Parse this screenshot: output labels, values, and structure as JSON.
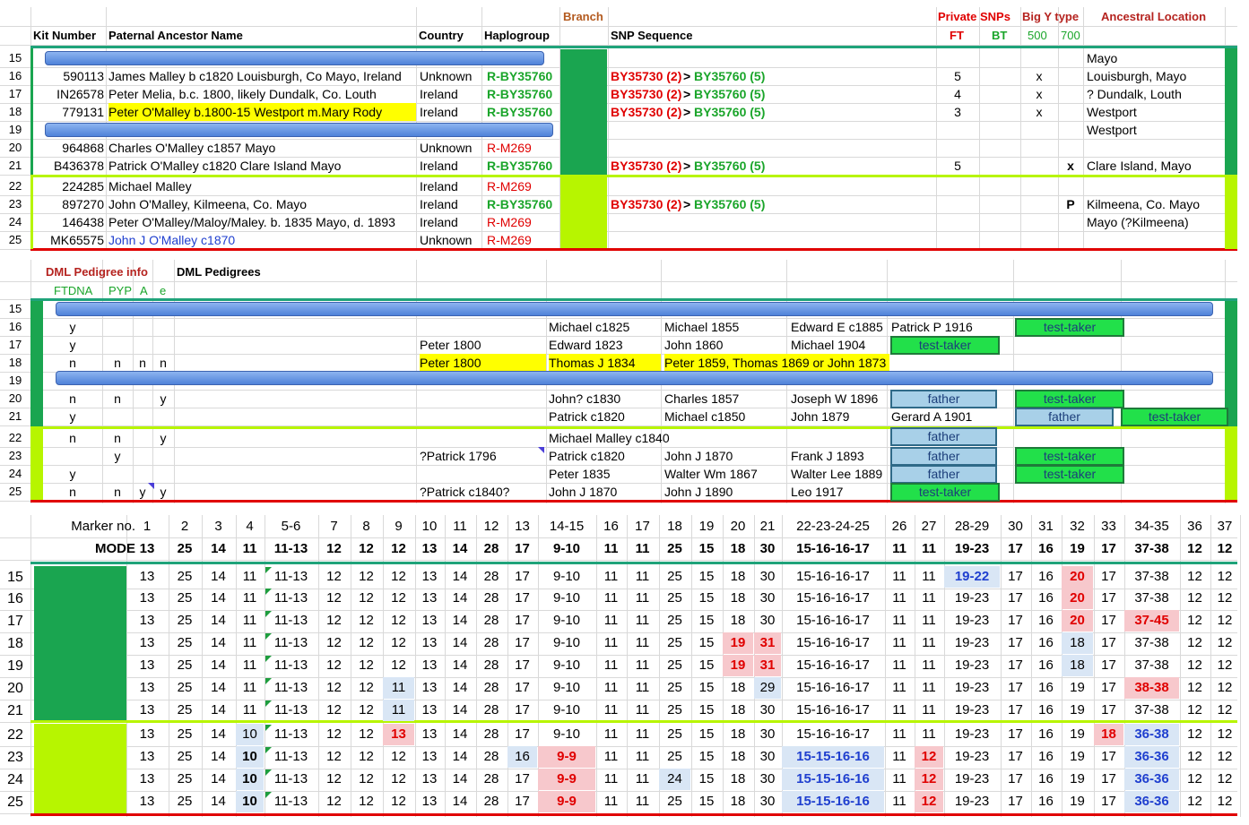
{
  "section1": {
    "header_top": {
      "branch": "Branch",
      "private_snps": "Private SNPs",
      "big_y_type": "Big Y type",
      "ancestral_location": "Ancestral Location"
    },
    "header": {
      "kit": "Kit Number",
      "name": "Paternal Ancestor Name",
      "country": "Country",
      "haplogroup": "Haplogroup",
      "snp_seq": "SNP Sequence",
      "ft": "FT",
      "bt": "BT",
      "t500": "500",
      "t700": "700"
    },
    "rows": [
      {
        "n": "15",
        "kit": "",
        "name": "",
        "country": "",
        "hap": "",
        "snp_a": "",
        "snp_b": "",
        "ft": "",
        "t500": "",
        "t700": "",
        "loc": "Mayo"
      },
      {
        "n": "16",
        "kit": "590113",
        "name": "James Malley b c1820  Louisburgh, Co Mayo, Ireland",
        "country": "Unknown",
        "hap": "R-BY35760",
        "snp_a": "BY35730 (2)",
        "snp_b": "BY35760 (5)",
        "ft": "5",
        "t500": "x",
        "t700": "",
        "loc": "Louisburgh, Mayo"
      },
      {
        "n": "17",
        "kit": "IN26578",
        "name": "Peter Melia, b.c. 1800, likely Dundalk, Co. Louth",
        "country": "Ireland",
        "hap": "R-BY35760",
        "snp_a": "BY35730 (2)",
        "snp_b": "BY35760 (5)",
        "ft": "4",
        "t500": "x",
        "t700": "",
        "loc": "? Dundalk, Louth"
      },
      {
        "n": "18",
        "kit": "779131",
        "name": "Peter O'Malley b.1800-15 Westport m.Mary Rody",
        "country": "Ireland",
        "hap": "R-BY35760",
        "snp_a": "BY35730 (2)",
        "snp_b": "BY35760 (5)",
        "ft": "3",
        "t500": "x",
        "t700": "",
        "loc": "Westport"
      },
      {
        "n": "19",
        "kit": "",
        "name": "",
        "country": "",
        "hap": "",
        "snp_a": "",
        "snp_b": "",
        "ft": "",
        "t500": "",
        "t700": "",
        "loc": "Westport"
      },
      {
        "n": "20",
        "kit": "964868",
        "name": "Charles O'Malley c1857 Mayo",
        "country": "Unknown",
        "hap": "R-M269",
        "snp_a": "",
        "snp_b": "",
        "ft": "",
        "t500": "",
        "t700": "",
        "loc": ""
      },
      {
        "n": "21",
        "kit": "B436378",
        "name": "Patrick O'Malley c1820 Clare Island Mayo",
        "country": "Ireland",
        "hap": "R-BY35760",
        "snp_a": "BY35730 (2)",
        "snp_b": "BY35760 (5)",
        "ft": "5",
        "t500": "",
        "t700": "x",
        "loc": "Clare Island, Mayo"
      },
      {
        "n": "22",
        "kit": "224285",
        "name": "Michael Malley",
        "country": "Ireland",
        "hap": "R-M269",
        "snp_a": "",
        "snp_b": "",
        "ft": "",
        "t500": "",
        "t700": "",
        "loc": ""
      },
      {
        "n": "23",
        "kit": "897270",
        "name": "John O'Malley, Kilmeena, Co. Mayo",
        "country": "Ireland",
        "hap": "R-BY35760",
        "snp_a": "BY35730 (2)",
        "snp_b": "BY35760 (5)",
        "ft": "",
        "t500": "",
        "t700": "P",
        "loc": "Kilmeena, Co. Mayo"
      },
      {
        "n": "24",
        "kit": "146438",
        "name": "Peter O'Malley/Maloy/Maley. b. 1835 Mayo, d. 1893",
        "country": "Ireland",
        "hap": "R-M269",
        "snp_a": "",
        "snp_b": "",
        "ft": "",
        "t500": "",
        "t700": "",
        "loc": "Mayo (?Kilmeena)"
      },
      {
        "n": "25",
        "kit": "MK65575",
        "name": "John J O'Malley c1870",
        "country": "Unknown",
        "hap": "R-M269",
        "snp_a": "",
        "snp_b": "",
        "ft": "",
        "t500": "",
        "t700": "",
        "loc": ""
      }
    ],
    "gt": ">"
  },
  "section2": {
    "header": {
      "dml_info": "DML Pedigree info",
      "dml_ped": "DML Pedigrees",
      "ftdna": "FTDNA",
      "pyp": "PYP",
      "a": "A",
      "e": "e"
    },
    "rows": [
      {
        "n": "15",
        "ftdna": "",
        "pyp": "",
        "a": "",
        "e": "",
        "g1": "",
        "g2": "",
        "g3": "",
        "g4": "",
        "g5": ""
      },
      {
        "n": "16",
        "ftdna": "y",
        "pyp": "",
        "a": "",
        "e": "",
        "g1": "",
        "g2": "Michael c1825",
        "g3": "Michael 1855",
        "g4": "Edward E c1885",
        "g5": "Patrick P 1916"
      },
      {
        "n": "17",
        "ftdna": "y",
        "pyp": "",
        "a": "",
        "e": "",
        "g1": "Peter 1800",
        "g2": "Edward 1823",
        "g3": "John 1860",
        "g4": "Michael 1904",
        "g5": ""
      },
      {
        "n": "18",
        "ftdna": "n",
        "pyp": "n",
        "a": "n",
        "e": "n",
        "g1": "Peter 1800",
        "g2": "Thomas J 1834",
        "g3": "Peter 1859, Thomas 1869 or John 1873",
        "g4": "",
        "g5": ""
      },
      {
        "n": "19",
        "ftdna": "",
        "pyp": "",
        "a": "",
        "e": "",
        "g1": "",
        "g2": "",
        "g3": "",
        "g4": "",
        "g5": ""
      },
      {
        "n": "20",
        "ftdna": "n",
        "pyp": "n",
        "a": "",
        "e": "y",
        "g1": "",
        "g2": "John? c1830",
        "g3": "Charles 1857",
        "g4": "Joseph W 1896",
        "g5": ""
      },
      {
        "n": "21",
        "ftdna": "y",
        "pyp": "",
        "a": "",
        "e": "",
        "g1": "",
        "g2": "Patrick c1820",
        "g3": "Michael c1850",
        "g4": "John 1879",
        "g5": "Gerard A 1901"
      },
      {
        "n": "22",
        "ftdna": "n",
        "pyp": "n",
        "a": "",
        "e": "y",
        "g1": "",
        "g2": "Michael Malley c1840",
        "g3": "",
        "g4": "",
        "g5": ""
      },
      {
        "n": "23",
        "ftdna": "",
        "pyp": "y",
        "a": "",
        "e": "",
        "g1": "?Patrick 1796",
        "g2": "Patrick c1820",
        "g3": "John J 1870",
        "g4": "Frank J 1893",
        "g5": ""
      },
      {
        "n": "24",
        "ftdna": "y",
        "pyp": "",
        "a": "",
        "e": "",
        "g1": "",
        "g2": "Peter 1835",
        "g3": "Walter Wm 1867",
        "g4": "Walter Lee 1889",
        "g5": ""
      },
      {
        "n": "25",
        "ftdna": "n",
        "pyp": "n",
        "a": "y",
        "e": "y",
        "g1": "?Patrick c1840?",
        "g2": "John J 1870",
        "g3": "John J 1890",
        "g4": "Leo 1917",
        "g5": ""
      }
    ],
    "labels": {
      "test_taker": "test-taker",
      "father": "father"
    }
  },
  "section3": {
    "marker_label": "Marker no.",
    "mode_label": "MODE",
    "markers": [
      "1",
      "2",
      "3",
      "4",
      "5-6",
      "7",
      "8",
      "9",
      "10",
      "11",
      "12",
      "13",
      "14-15",
      "16",
      "17",
      "18",
      "19",
      "20",
      "21",
      "22-23-24-25",
      "26",
      "27",
      "28-29",
      "30",
      "31",
      "32",
      "33",
      "34-35",
      "36",
      "37"
    ],
    "mode": [
      "13",
      "25",
      "14",
      "11",
      "11-13",
      "12",
      "12",
      "12",
      "13",
      "14",
      "28",
      "17",
      "9-10",
      "11",
      "11",
      "25",
      "15",
      "18",
      "30",
      "15-16-16-17",
      "11",
      "11",
      "19-23",
      "17",
      "16",
      "19",
      "17",
      "37-38",
      "12",
      "12"
    ],
    "rows": [
      {
        "n": "15",
        "v": [
          "13",
          "25",
          "14",
          "11",
          "11-13",
          "12",
          "12",
          "12",
          "13",
          "14",
          "28",
          "17",
          "9-10",
          "11",
          "11",
          "25",
          "15",
          "18",
          "30",
          "15-16-16-17",
          "11",
          "11",
          "19-22",
          "17",
          "16",
          "20",
          "17",
          "37-38",
          "12",
          "12"
        ]
      },
      {
        "n": "16",
        "v": [
          "13",
          "25",
          "14",
          "11",
          "11-13",
          "12",
          "12",
          "12",
          "13",
          "14",
          "28",
          "17",
          "9-10",
          "11",
          "11",
          "25",
          "15",
          "18",
          "30",
          "15-16-16-17",
          "11",
          "11",
          "19-23",
          "17",
          "16",
          "20",
          "17",
          "37-38",
          "12",
          "12"
        ]
      },
      {
        "n": "17",
        "v": [
          "13",
          "25",
          "14",
          "11",
          "11-13",
          "12",
          "12",
          "12",
          "13",
          "14",
          "28",
          "17",
          "9-10",
          "11",
          "11",
          "25",
          "15",
          "18",
          "30",
          "15-16-16-17",
          "11",
          "11",
          "19-23",
          "17",
          "16",
          "20",
          "17",
          "37-45",
          "12",
          "12"
        ]
      },
      {
        "n": "18",
        "v": [
          "13",
          "25",
          "14",
          "11",
          "11-13",
          "12",
          "12",
          "12",
          "13",
          "14",
          "28",
          "17",
          "9-10",
          "11",
          "11",
          "25",
          "15",
          "19",
          "31",
          "15-16-16-17",
          "11",
          "11",
          "19-23",
          "17",
          "16",
          "18",
          "17",
          "37-38",
          "12",
          "12"
        ]
      },
      {
        "n": "19",
        "v": [
          "13",
          "25",
          "14",
          "11",
          "11-13",
          "12",
          "12",
          "12",
          "13",
          "14",
          "28",
          "17",
          "9-10",
          "11",
          "11",
          "25",
          "15",
          "19",
          "31",
          "15-16-16-17",
          "11",
          "11",
          "19-23",
          "17",
          "16",
          "18",
          "17",
          "37-38",
          "12",
          "12"
        ]
      },
      {
        "n": "20",
        "v": [
          "13",
          "25",
          "14",
          "11",
          "11-13",
          "12",
          "12",
          "11",
          "13",
          "14",
          "28",
          "17",
          "9-10",
          "11",
          "11",
          "25",
          "15",
          "18",
          "29",
          "15-16-16-17",
          "11",
          "11",
          "19-23",
          "17",
          "16",
          "19",
          "17",
          "38-38",
          "12",
          "12"
        ]
      },
      {
        "n": "21",
        "v": [
          "13",
          "25",
          "14",
          "11",
          "11-13",
          "12",
          "12",
          "11",
          "13",
          "14",
          "28",
          "17",
          "9-10",
          "11",
          "11",
          "25",
          "15",
          "18",
          "30",
          "15-16-16-17",
          "11",
          "11",
          "19-23",
          "17",
          "16",
          "19",
          "17",
          "37-38",
          "12",
          "12"
        ]
      },
      {
        "n": "22",
        "v": [
          "13",
          "25",
          "14",
          "10",
          "11-13",
          "12",
          "12",
          "13",
          "13",
          "14",
          "28",
          "17",
          "9-10",
          "11",
          "11",
          "25",
          "15",
          "18",
          "30",
          "15-16-16-17",
          "11",
          "11",
          "19-23",
          "17",
          "16",
          "19",
          "18",
          "36-38",
          "12",
          "12"
        ]
      },
      {
        "n": "23",
        "v": [
          "13",
          "25",
          "14",
          "10",
          "11-13",
          "12",
          "12",
          "12",
          "13",
          "14",
          "28",
          "16",
          "9-9",
          "11",
          "11",
          "25",
          "15",
          "18",
          "30",
          "15-15-16-16",
          "11",
          "12",
          "19-23",
          "17",
          "16",
          "19",
          "17",
          "36-36",
          "12",
          "12"
        ]
      },
      {
        "n": "24",
        "v": [
          "13",
          "25",
          "14",
          "10",
          "11-13",
          "12",
          "12",
          "12",
          "13",
          "14",
          "28",
          "17",
          "9-9",
          "11",
          "11",
          "24",
          "15",
          "18",
          "30",
          "15-15-16-16",
          "11",
          "12",
          "19-23",
          "17",
          "16",
          "19",
          "17",
          "36-36",
          "12",
          "12"
        ]
      },
      {
        "n": "25",
        "v": [
          "13",
          "25",
          "14",
          "10",
          "11-13",
          "12",
          "12",
          "12",
          "13",
          "14",
          "28",
          "17",
          "9-9",
          "11",
          "11",
          "25",
          "15",
          "18",
          "30",
          "15-15-16-16",
          "11",
          "12",
          "19-23",
          "17",
          "16",
          "19",
          "17",
          "36-36",
          "12",
          "12"
        ]
      }
    ]
  },
  "colors": {
    "dark_green": "#1aa550",
    "lime": "#b7f500",
    "red_line": "#e00000",
    "teal_line": "#1fa37a"
  }
}
